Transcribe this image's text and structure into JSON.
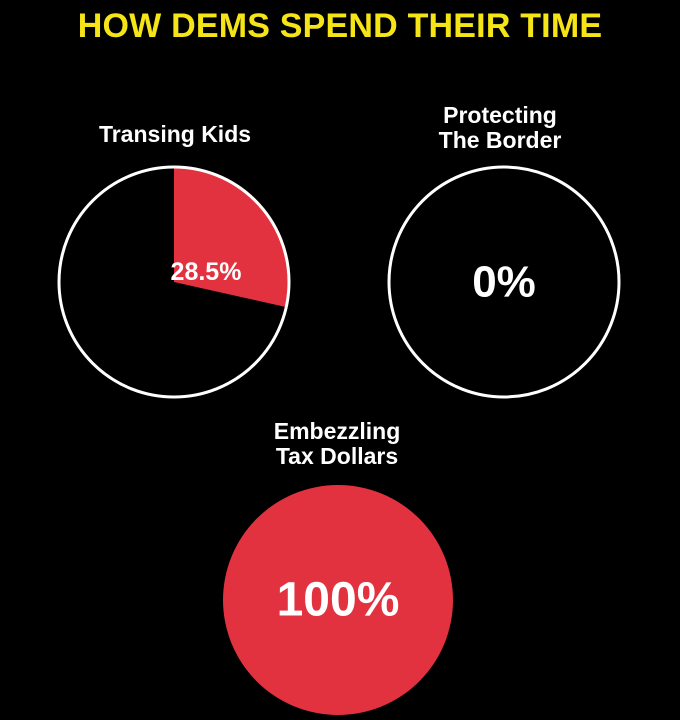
{
  "title": "HOW DEMS SPEND THEIR TIME",
  "colors": {
    "background": "#000000",
    "title": "#f6e516",
    "slice": "#e3323f",
    "outline": "#ffffff",
    "text": "#ffffff"
  },
  "chart_data": [
    {
      "type": "pie",
      "title_lines": [
        "Transing Kids"
      ],
      "value": 28.5,
      "label": "28.5%"
    },
    {
      "type": "pie",
      "title_lines": [
        "Protecting",
        "The Border"
      ],
      "value": 0,
      "label": "0%"
    },
    {
      "type": "pie",
      "title_lines": [
        "Embezzling",
        "Tax Dollars"
      ],
      "value": 100,
      "label": "100%"
    }
  ]
}
